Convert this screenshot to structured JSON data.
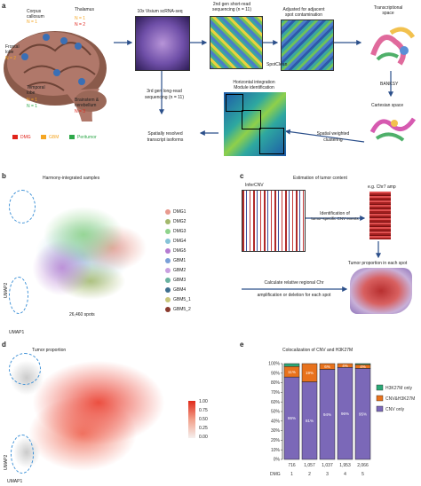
{
  "panel_a": {
    "letter": "a",
    "regions": {
      "corpus": [
        "Corpus",
        "callosum"
      ],
      "corpus_n": "N = 1",
      "thalamus": "Thalamus",
      "thalamus_n1": "N = 1",
      "thalamus_n2": "N = 2",
      "frontal": [
        "Frontal",
        "lobe"
      ],
      "frontal_n": "N = 2",
      "temporal": [
        "Temporal",
        "lobe"
      ],
      "temporal_n1": "N = 1",
      "temporal_n2": "N = 1",
      "brainstem": [
        "Brainstem &",
        "cerebellum"
      ],
      "brainstem_n": "N = 3"
    },
    "legend": [
      "DMG",
      "GBM",
      "Peritumor"
    ],
    "legend_colors": [
      "#e0241b",
      "#f5a623",
      "#2ea84a"
    ],
    "visium": "10x Visium scRNA-seq",
    "short_read": [
      "2nd gen short-read",
      "sequencing (n = 11)"
    ],
    "adjusted": [
      "Adjusted for adjacent",
      "spot contamination"
    ],
    "transcriptional": [
      "Transcriptional",
      "space"
    ],
    "spotclean": "SpotClean",
    "long_read": [
      "3rd gen long-read",
      "sequencing (n = 11)"
    ],
    "horizontal": [
      "Horizontal integration",
      "Module identification"
    ],
    "banksy": "BANKSY",
    "cartesian": [
      "Cartesian space"
    ],
    "spatially": [
      "Spatially resolved",
      "transcript isoforms"
    ],
    "weighted": [
      "Spatial weighted",
      "clustering"
    ]
  },
  "panel_b": {
    "letter": "b",
    "title": "Harmony-integrated samples",
    "legend": [
      "DMG1",
      "DMG2",
      "DMG3",
      "DMG4",
      "DMG5",
      "GBM1",
      "GBM2",
      "GBM3",
      "GBM4",
      "GBM5_1",
      "GBM5_2"
    ],
    "legend_colors": [
      "#e89a8e",
      "#a3b86c",
      "#8fd38c",
      "#86c3d8",
      "#b57bd1",
      "#7aa0d8",
      "#c9a0e0",
      "#6ab2a0",
      "#3f6f8f",
      "#c9c67a",
      "#8a3a2e"
    ],
    "umap2": "UMAP2",
    "umap1": "UMAP1",
    "spots": "26,460 spots"
  },
  "panel_c": {
    "letter": "c",
    "title": "Estimation of tumor content",
    "infercnv": "InferCNV",
    "eg": "e.g. Chr7 amp",
    "ident": [
      "Identification of",
      "tumor-specific CNV events"
    ],
    "proportion": "Tumor proportion in each spot",
    "calc": [
      "Calculate relative regional Chr",
      "amplification or deletion for each spot"
    ]
  },
  "panel_d": {
    "letter": "d",
    "title": "Tumor proportion",
    "scale": [
      "1.00",
      "0.75",
      "0.50",
      "0.25",
      "0.00"
    ],
    "umap2": "UMAP2",
    "umap1": "UMAP1"
  },
  "panel_e": {
    "letter": "e",
    "title": "Colocalization of CNV and H3K27M",
    "legend": [
      "H3K27M only",
      "CNV&H3K27M",
      "CNV only"
    ],
    "legend_colors": [
      "#2aa876",
      "#e8721c",
      "#7b68b8"
    ],
    "x_prefix": "DMG",
    "chart_data": {
      "type": "bar",
      "stacked": true,
      "categories": [
        "1",
        "2",
        "3",
        "4",
        "5"
      ],
      "counts": [
        "716",
        "1,057",
        "1,037",
        "1,953",
        "2,066"
      ],
      "series": [
        {
          "name": "CNV only",
          "values": [
            86,
            81,
            94,
            96,
            95
          ]
        },
        {
          "name": "CNV&H3K27M",
          "values": [
            11,
            19,
            6,
            4,
            4
          ]
        },
        {
          "name": "H3K27M only",
          "values": [
            3,
            0,
            0,
            0,
            1
          ]
        }
      ],
      "ylim": [
        0,
        100
      ],
      "yticks": [
        "0%",
        "10%",
        "20%",
        "30%",
        "40%",
        "50%",
        "60%",
        "70%",
        "80%",
        "90%",
        "100%"
      ],
      "labels": [
        [
          "86%",
          "11%",
          ""
        ],
        [
          "81%",
          "19%",
          ""
        ],
        [
          "94%",
          "6%",
          ""
        ],
        [
          "96%",
          "4%",
          ""
        ],
        [
          "95%",
          "4%",
          ""
        ]
      ]
    }
  }
}
